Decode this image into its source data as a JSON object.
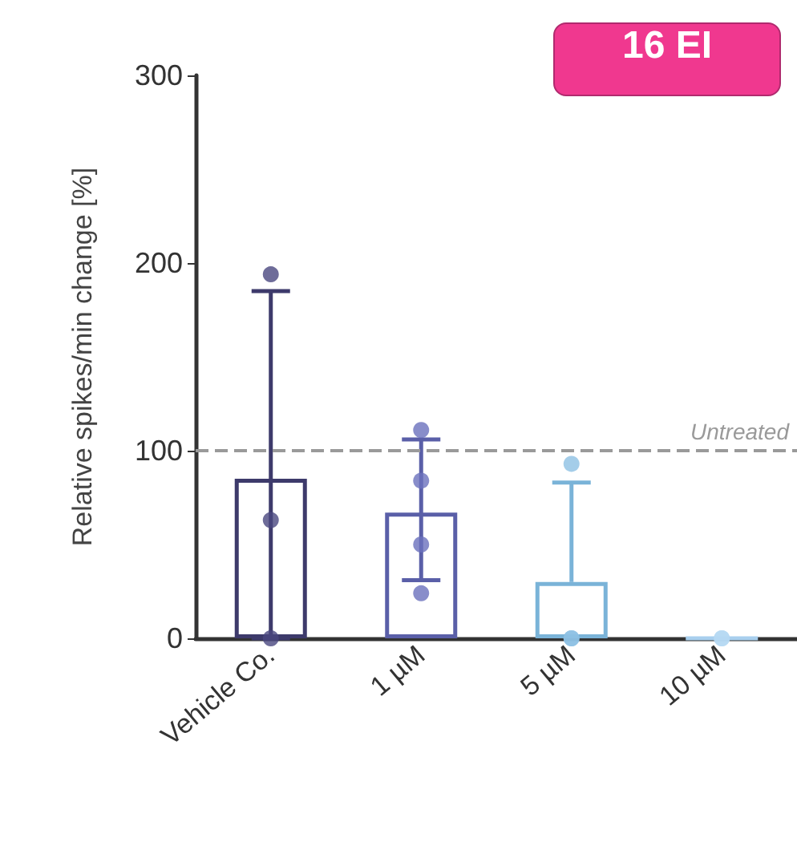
{
  "chart_data": {
    "type": "bar",
    "categories": [
      "Vehicle Co.",
      "1 µM",
      "5 µM",
      "10 µM"
    ],
    "ylabel": "Relative spikes/min change [%]",
    "ylim": [
      0,
      300
    ],
    "yticks": [
      0,
      100,
      200,
      300
    ],
    "grid": false,
    "marker": "circle",
    "annotations": [
      "16 EI"
    ],
    "ref_lines": [
      {
        "axis": "y",
        "value": 100,
        "label": "Untreated",
        "color": "#9a9a9a",
        "line_style": "dashed"
      }
    ],
    "series": [
      {
        "values": [
          85,
          67,
          30,
          0
        ],
        "colors": [
          "#3d3a6b",
          "#5a5fa8",
          "#7ab3d8",
          "#a8cfee"
        ],
        "errors": [
          [
            0,
            185
          ],
          [
            31,
            106
          ],
          [
            30,
            83
          ],
          null
        ]
      },
      {
        "type": "scatter",
        "x": [
          "Vehicle Co.",
          "Vehicle Co.",
          "Vehicle Co.",
          "1 µM",
          "1 µM",
          "1 µM",
          "1 µM",
          "5 µM",
          "5 µM",
          "5 µM",
          "10 µM",
          "10 µM"
        ],
        "values": [
          194,
          63,
          0,
          111,
          84,
          50,
          24,
          93,
          0,
          0,
          0,
          0
        ],
        "colors": [
          "#4a4780",
          "#4a4780",
          "#4a4780",
          "#6a70bd",
          "#6a70bd",
          "#6a70bd",
          "#6a70bd",
          "#8dc0e3",
          "#8dc0e3",
          "#8dc0e3",
          "#b5d8f2",
          "#b5d8f2"
        ]
      }
    ]
  }
}
